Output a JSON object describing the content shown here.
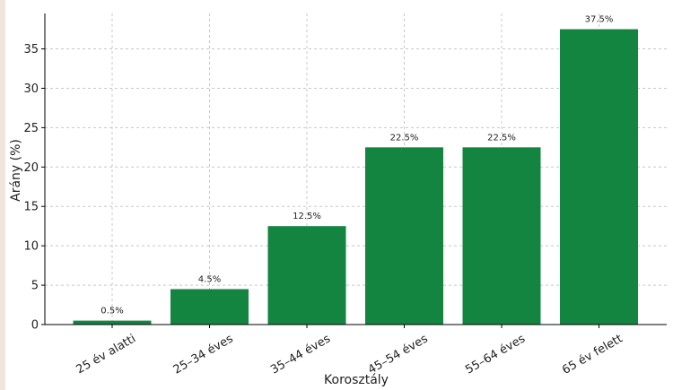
{
  "chart_data": {
    "type": "bar",
    "categories": [
      "25 év alatti",
      "25–34 éves",
      "35–44 éves",
      "45–54 éves",
      "55–64 éves",
      "65 év felett"
    ],
    "values": [
      0.5,
      4.5,
      12.5,
      22.5,
      22.5,
      37.5
    ],
    "data_labels": [
      "0.5%",
      "4.5%",
      "12.5%",
      "22.5%",
      "22.5%",
      "37.5%"
    ],
    "xlabel": "Korosztály",
    "ylabel": "Arány (%)",
    "ylim": [
      0,
      39.5
    ],
    "yticks": [
      0,
      5,
      10,
      15,
      20,
      25,
      30,
      35
    ],
    "grid": true,
    "bar_color": "#138540",
    "grid_color": "#c8c8c8"
  }
}
